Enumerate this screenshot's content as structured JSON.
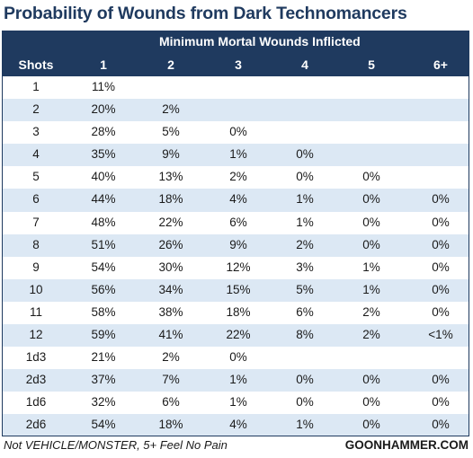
{
  "title": "Probability of Wounds from Dark Technomancers",
  "table": {
    "group_header": "Minimum Mortal Wounds Inflicted",
    "columns": [
      "Shots",
      "1",
      "2",
      "3",
      "4",
      "5",
      "6+"
    ],
    "rows": [
      [
        "1",
        "11%",
        "",
        "",
        "",
        "",
        ""
      ],
      [
        "2",
        "20%",
        "2%",
        "",
        "",
        "",
        ""
      ],
      [
        "3",
        "28%",
        "5%",
        "0%",
        "",
        "",
        ""
      ],
      [
        "4",
        "35%",
        "9%",
        "1%",
        "0%",
        "",
        ""
      ],
      [
        "5",
        "40%",
        "13%",
        "2%",
        "0%",
        "0%",
        ""
      ],
      [
        "6",
        "44%",
        "18%",
        "4%",
        "1%",
        "0%",
        "0%"
      ],
      [
        "7",
        "48%",
        "22%",
        "6%",
        "1%",
        "0%",
        "0%"
      ],
      [
        "8",
        "51%",
        "26%",
        "9%",
        "2%",
        "0%",
        "0%"
      ],
      [
        "9",
        "54%",
        "30%",
        "12%",
        "3%",
        "1%",
        "0%"
      ],
      [
        "10",
        "56%",
        "34%",
        "15%",
        "5%",
        "1%",
        "0%"
      ],
      [
        "11",
        "58%",
        "38%",
        "18%",
        "6%",
        "2%",
        "0%"
      ],
      [
        "12",
        "59%",
        "41%",
        "22%",
        "8%",
        "2%",
        "<1%"
      ],
      [
        "1d3",
        "21%",
        "2%",
        "0%",
        "",
        "",
        ""
      ],
      [
        "2d3",
        "37%",
        "7%",
        "1%",
        "0%",
        "0%",
        "0%"
      ],
      [
        "1d6",
        "32%",
        "6%",
        "1%",
        "0%",
        "0%",
        "0%"
      ],
      [
        "2d6",
        "54%",
        "18%",
        "4%",
        "1%",
        "0%",
        "0%"
      ]
    ]
  },
  "footer": {
    "note": "Not VEHICLE/MONSTER, 5+ Feel No Pain",
    "brand": "GOONHAMMER.COM"
  },
  "colors": {
    "header_bg": "#1f3a5f",
    "stripe_bg": "#dce8f4",
    "title_color": "#1f3a5f"
  }
}
